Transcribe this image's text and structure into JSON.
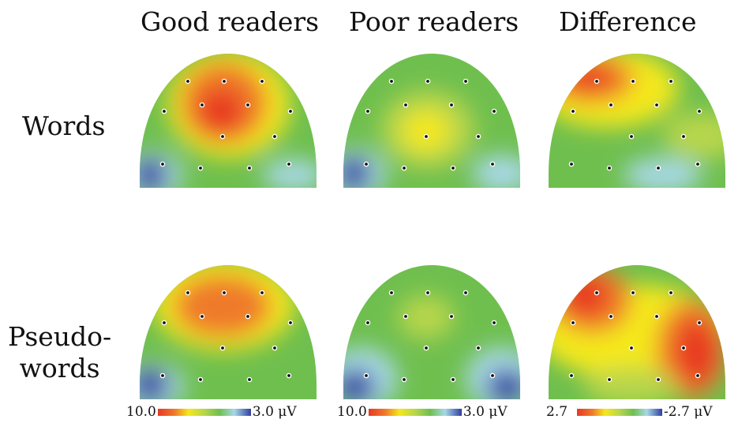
{
  "columns": {
    "good": "Good readers",
    "poor": "Poor readers",
    "diff": "Difference"
  },
  "rows": {
    "words": "Words",
    "pseudo_line1": "Pseudo-",
    "pseudo_line2": "words"
  },
  "scales": {
    "good_min": "10.0",
    "good_max": "3.0 μV",
    "poor_min": "10.0",
    "poor_max": "3.0 μV",
    "diff_min": "2.7",
    "diff_max": "-2.7 μV"
  },
  "colors": {
    "red": "#e83824",
    "orange": "#ef7a2a",
    "yellow": "#f4e81c",
    "lightgreen": "#b7d64c",
    "green": "#6fbf4f",
    "lightblue": "#a7d8e6",
    "blue": "#2f3fa0"
  }
}
